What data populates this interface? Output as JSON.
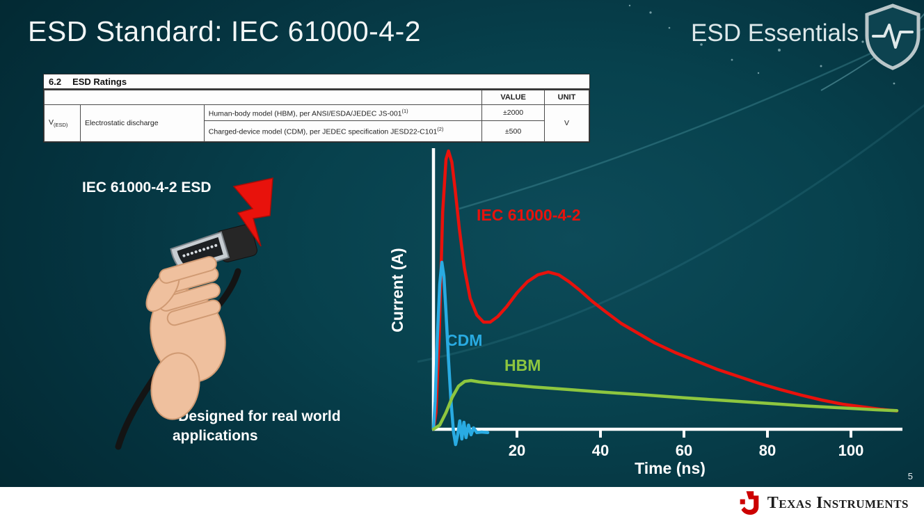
{
  "slide": {
    "title": "ESD Standard: IEC 61000-4-2",
    "brand": "ESD Essentials",
    "page_number": "5",
    "footer_brand": "Texas Instruments"
  },
  "ratings_table": {
    "section_number": "6.2",
    "section_title": "ESD Ratings",
    "value_header": "VALUE",
    "unit_header": "UNIT",
    "symbol_main": "V",
    "symbol_sub": "(ESD)",
    "parameter": "Electrostatic discharge",
    "rows": [
      {
        "condition": "Human-body model (HBM), per ANSI/ESDA/JEDEC JS-001",
        "sup": "(1)",
        "value": "±2000"
      },
      {
        "condition": "Charged-device model (CDM), per JEDEC specification JESD22-C101",
        "sup": "(2)",
        "value": "±500"
      }
    ],
    "unit": "V"
  },
  "left_panel": {
    "caption": "IEC 61000-4-2 ESD",
    "note": "*Designed for real world\napplications"
  },
  "chart_data": {
    "type": "line",
    "title": "",
    "xlabel": "Time (ns)",
    "ylabel": "Current (A)",
    "x_ticks": [
      20,
      40,
      60,
      80,
      100
    ],
    "xlim": [
      0,
      112
    ],
    "ylim_normalized": [
      -0.08,
      1.0
    ],
    "legend_position": "inline-labels",
    "grid": false,
    "series": [
      {
        "name": "IEC 61000-4-2",
        "color": "#e8120c",
        "points": [
          [
            0,
            0
          ],
          [
            0.6,
            0.06
          ],
          [
            1.4,
            0.35
          ],
          [
            2.2,
            0.78
          ],
          [
            3,
            0.97
          ],
          [
            3.6,
            1.0
          ],
          [
            4.4,
            0.96
          ],
          [
            5.2,
            0.86
          ],
          [
            6.2,
            0.72
          ],
          [
            7.4,
            0.58
          ],
          [
            8.8,
            0.47
          ],
          [
            10.4,
            0.41
          ],
          [
            12,
            0.385
          ],
          [
            13.6,
            0.385
          ],
          [
            15.4,
            0.405
          ],
          [
            17.5,
            0.44
          ],
          [
            20,
            0.49
          ],
          [
            22.5,
            0.53
          ],
          [
            25,
            0.555
          ],
          [
            27.5,
            0.565
          ],
          [
            30,
            0.555
          ],
          [
            32.5,
            0.53
          ],
          [
            35,
            0.5
          ],
          [
            38,
            0.46
          ],
          [
            41,
            0.425
          ],
          [
            45,
            0.38
          ],
          [
            49,
            0.345
          ],
          [
            53,
            0.31
          ],
          [
            58,
            0.275
          ],
          [
            63,
            0.245
          ],
          [
            68,
            0.215
          ],
          [
            73,
            0.19
          ],
          [
            78,
            0.165
          ],
          [
            83,
            0.143
          ],
          [
            88,
            0.123
          ],
          [
            93,
            0.105
          ],
          [
            98,
            0.09
          ],
          [
            103,
            0.08
          ],
          [
            107,
            0.072
          ],
          [
            111,
            0.066
          ]
        ]
      },
      {
        "name": "CDM",
        "color": "#29abe2",
        "points": [
          [
            0,
            0
          ],
          [
            0.4,
            0.1
          ],
          [
            0.9,
            0.32
          ],
          [
            1.5,
            0.52
          ],
          [
            2,
            0.6
          ],
          [
            2.5,
            0.55
          ],
          [
            3,
            0.42
          ],
          [
            3.6,
            0.25
          ],
          [
            4.2,
            0.1
          ],
          [
            4.8,
            -0.01
          ],
          [
            5.3,
            -0.055
          ],
          [
            5.8,
            -0.02
          ],
          [
            6.3,
            0.03
          ],
          [
            6.8,
            -0.035
          ],
          [
            7.3,
            0.025
          ],
          [
            7.8,
            -0.03
          ],
          [
            8.4,
            0.015
          ],
          [
            9,
            -0.02
          ],
          [
            9.6,
            0.005
          ],
          [
            10.4,
            -0.012
          ],
          [
            11.5,
            -0.01
          ],
          [
            13,
            -0.012
          ]
        ]
      },
      {
        "name": "HBM",
        "color": "#8dc63f",
        "points": [
          [
            0,
            0
          ],
          [
            1.5,
            0.015
          ],
          [
            3,
            0.06
          ],
          [
            4.5,
            0.115
          ],
          [
            6,
            0.155
          ],
          [
            7.5,
            0.172
          ],
          [
            9,
            0.175
          ],
          [
            11,
            0.17
          ],
          [
            14,
            0.165
          ],
          [
            18,
            0.16
          ],
          [
            24,
            0.152
          ],
          [
            32,
            0.143
          ],
          [
            40,
            0.134
          ],
          [
            50,
            0.124
          ],
          [
            60,
            0.113
          ],
          [
            70,
            0.103
          ],
          [
            80,
            0.093
          ],
          [
            90,
            0.083
          ],
          [
            100,
            0.075
          ],
          [
            106,
            0.07
          ],
          [
            111,
            0.067
          ]
        ]
      }
    ]
  }
}
